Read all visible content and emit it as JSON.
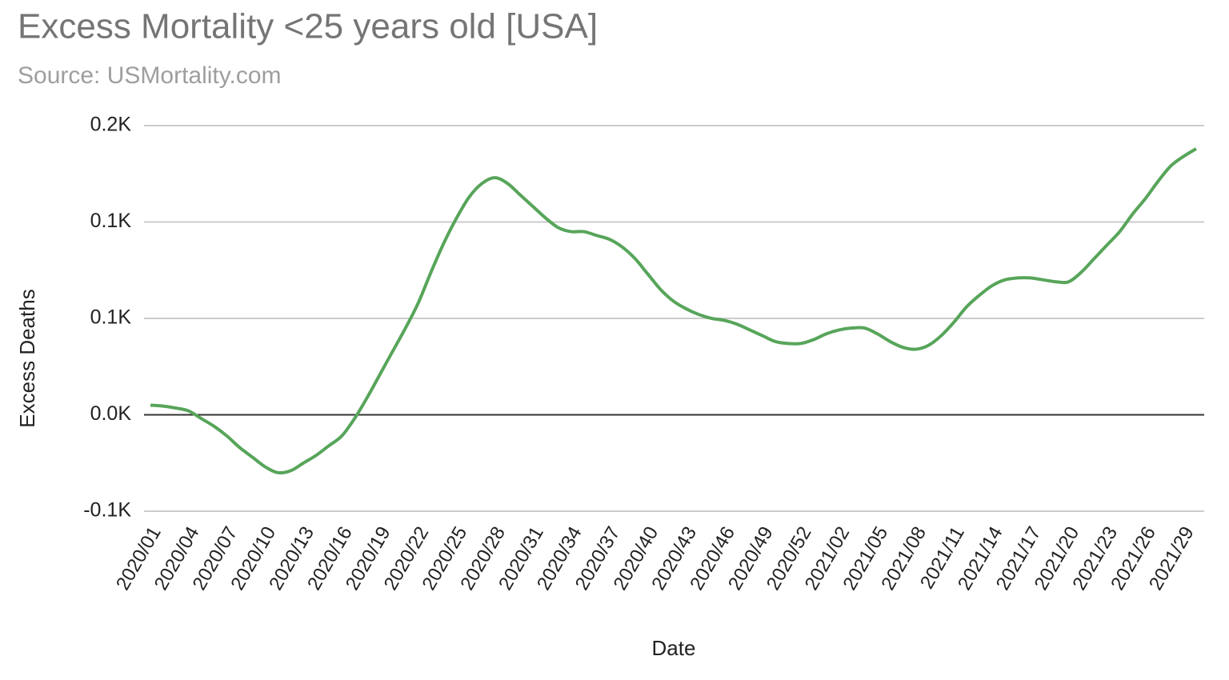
{
  "chart_data": {
    "type": "line",
    "title": "Excess Mortality <25 years old [USA]",
    "subtitle": "Source: USMortality.com",
    "x_label": "Date",
    "y_label": "Excess Deaths",
    "color": "#57a55a",
    "grid": true,
    "categories": [
      "2020/01",
      null,
      null,
      "2020/04",
      null,
      null,
      "2020/07",
      null,
      null,
      "2020/10",
      null,
      null,
      "2020/13",
      null,
      null,
      "2020/16",
      null,
      null,
      "2020/19",
      null,
      null,
      "2020/22",
      null,
      null,
      "2020/25",
      null,
      null,
      "2020/28",
      null,
      null,
      "2020/31",
      null,
      null,
      "2020/34",
      null,
      null,
      "2020/37",
      null,
      null,
      "2020/40",
      null,
      null,
      "2020/43",
      null,
      null,
      "2020/46",
      null,
      null,
      "2020/49",
      null,
      null,
      "2020/52",
      null,
      null,
      "2021/02",
      null,
      null,
      "2021/05",
      null,
      null,
      "2021/08",
      null,
      null,
      "2021/11",
      null,
      null,
      "2021/14",
      null,
      null,
      "2021/17",
      null,
      null,
      "2021/20",
      null,
      null,
      "2021/23",
      null,
      null,
      "2021/26",
      null,
      null,
      "2021/29",
      null
    ],
    "values": [
      5,
      4.5,
      3.5,
      2,
      -2,
      -6,
      -11,
      -17,
      -22,
      -27,
      -30,
      -29,
      -25,
      -21,
      -16,
      -11,
      -2,
      9,
      21,
      33,
      45,
      58,
      74,
      89,
      102,
      113,
      120,
      123,
      120,
      114,
      108,
      102,
      97,
      95,
      95,
      93,
      91,
      87,
      81,
      73,
      65,
      59,
      55,
      52,
      50,
      49,
      47,
      44,
      41,
      38,
      37,
      37,
      39,
      42,
      44,
      45,
      45,
      42,
      38,
      35,
      34,
      36,
      41,
      48,
      56,
      62,
      67,
      70,
      71,
      71,
      70,
      69,
      69,
      74,
      81,
      88,
      95,
      104,
      112,
      121,
      129,
      134,
      138
    ],
    "ylim": [
      -50,
      150
    ],
    "yticks": [
      {
        "value": -50,
        "label": "-0.1K"
      },
      {
        "value": 0,
        "label": "0.0K"
      },
      {
        "value": 50,
        "label": "0.1K"
      },
      {
        "value": 100,
        "label": "0.1K"
      },
      {
        "value": 150,
        "label": "0.2K"
      }
    ]
  }
}
